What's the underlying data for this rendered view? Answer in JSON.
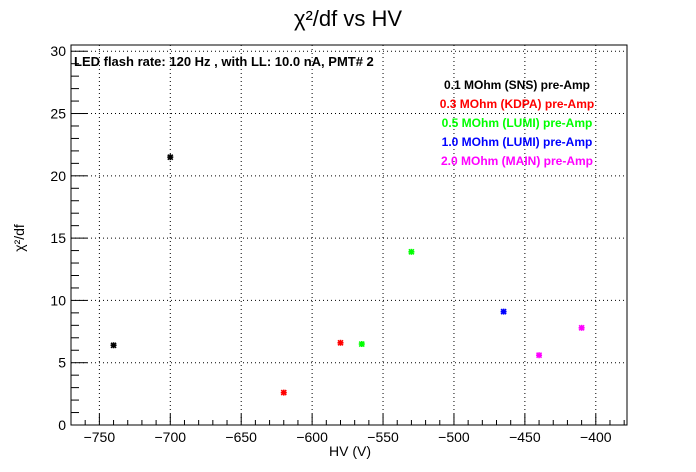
{
  "chart_data": {
    "type": "scatter",
    "title": "χ²/df vs HV",
    "xlabel": "HV (V)",
    "ylabel": "χ²/df",
    "xlim": [
      -770,
      -378
    ],
    "ylim": [
      0,
      30.5
    ],
    "x_ticks": [
      -750,
      -700,
      -650,
      -600,
      -550,
      -500,
      -450,
      -400
    ],
    "x_tick_labels": [
      "−750",
      "−700",
      "−650",
      "−600",
      "−550",
      "−500",
      "−450",
      "−400"
    ],
    "y_ticks": [
      0,
      5,
      10,
      15,
      20,
      25,
      30
    ],
    "y_tick_labels": [
      "0",
      "5",
      "10",
      "15",
      "20",
      "25",
      "30"
    ],
    "grid": true,
    "legend_position": "top-right",
    "annotation": "LED flash rate: 120 Hz , with LL: 10.0 nA, PMT# 2",
    "series": [
      {
        "name": "0.1 MOhm (SNS) pre-Amp",
        "color": "#000000",
        "points": [
          [
            -740,
            6.4
          ],
          [
            -700,
            21.5
          ]
        ]
      },
      {
        "name": "0.3 MOhm (KDPA) pre-Amp",
        "color": "#ff0000",
        "points": [
          [
            -620,
            2.6
          ],
          [
            -580,
            6.6
          ]
        ]
      },
      {
        "name": "0.5 MOhm (LUMI) pre-Amp",
        "color": "#00ff00",
        "points": [
          [
            -565,
            6.5
          ],
          [
            -530,
            13.9
          ]
        ]
      },
      {
        "name": "1.0 MOhm (LUMI) pre-Amp",
        "color": "#0000ff",
        "points": [
          [
            -465,
            9.1
          ]
        ]
      },
      {
        "name": "2.0 MOhm (MAIN) pre-Amp",
        "color": "#ff00ff",
        "points": [
          [
            -440,
            5.6
          ],
          [
            -410,
            7.8
          ]
        ]
      }
    ]
  }
}
